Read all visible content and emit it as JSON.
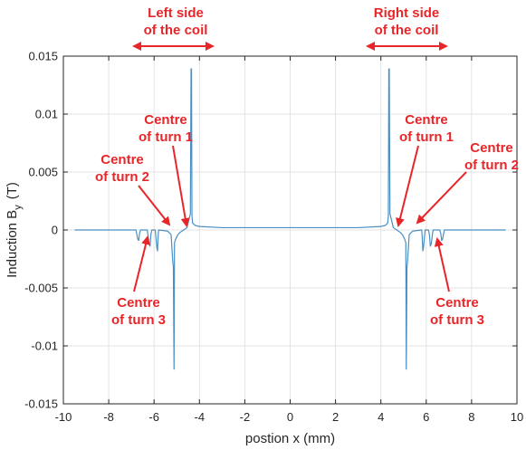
{
  "chart_data": {
    "type": "line",
    "xlabel": "postion x (mm)",
    "ylabel_main": "Induction B",
    "ylabel_sub": "y",
    "ylabel_unit": "(T)",
    "xlim": [
      -10,
      10
    ],
    "ylim": [
      -0.015,
      0.015
    ],
    "xticks": [
      -10,
      -8,
      -6,
      -4,
      -2,
      0,
      2,
      4,
      6,
      8,
      10
    ],
    "xtick_labels": [
      "-10",
      "-8",
      "-6",
      "-4",
      "-2",
      "0",
      "2",
      "4",
      "6",
      "8",
      "10"
    ],
    "yticks": [
      -0.015,
      -0.01,
      -0.005,
      0,
      0.005,
      0.01,
      0.015
    ],
    "ytick_labels": [
      "-0.015",
      "-0.01",
      "-0.005",
      "0",
      "0.005",
      "0.01",
      "0.015"
    ],
    "grid": true,
    "line_color": "#4a8fc4",
    "annotation_color": "#e8262a",
    "series": [
      {
        "x": [
          -9.5,
          -6.8,
          -6.72,
          -6.68,
          -6.64,
          -6.6,
          -6.3,
          -6.22,
          -6.18,
          -6.14,
          -6.1,
          -5.95,
          -5.88,
          -5.85,
          -5.82,
          -5.8,
          -5.4,
          -5.25,
          -5.18,
          -5.15,
          -5.12,
          -5.1,
          -5.05,
          -5.0,
          -4.95,
          -4.85,
          -4.7,
          -4.55,
          -4.4,
          -4.37,
          -4.35,
          -4.33,
          -4.3,
          -4.2,
          -4.0,
          -3.0,
          -2.0,
          -1.0,
          0,
          1.0,
          2.0,
          3.0,
          4.0,
          4.2,
          4.3,
          4.33,
          4.35,
          4.37,
          4.4,
          4.55,
          4.7,
          4.85,
          4.95,
          5.0,
          5.05,
          5.1,
          5.12,
          5.15,
          5.18,
          5.25,
          5.4,
          5.8,
          5.82,
          5.85,
          5.88,
          5.95,
          6.1,
          6.14,
          6.18,
          6.22,
          6.3,
          6.6,
          6.64,
          6.68,
          6.72,
          6.8,
          9.5
        ],
        "y": [
          0,
          0,
          -0.0008,
          -0.0009,
          -0.0003,
          0,
          0,
          -0.0012,
          -0.0014,
          -0.0004,
          0,
          0,
          -0.0015,
          -0.0018,
          -0.0005,
          0,
          -0.0001,
          -0.0004,
          -0.0026,
          -0.0032,
          -0.012,
          -0.0011,
          -0.0008,
          -0.0006,
          -0.0004,
          -0.0002,
          0,
          0.0002,
          0.0014,
          0.0139,
          0.0139,
          0.0012,
          0.0006,
          0.0004,
          0.0003,
          0.0002,
          0.0002,
          0.0002,
          0.0002,
          0.0002,
          0.0002,
          0.0002,
          0.0003,
          0.0004,
          0.0006,
          0.0012,
          0.0139,
          0.0139,
          0.0014,
          0.0002,
          0,
          -0.0002,
          -0.0004,
          -0.0006,
          -0.0008,
          -0.0011,
          -0.012,
          -0.0032,
          -0.0026,
          -0.0004,
          -0.0001,
          0,
          -0.0005,
          -0.0018,
          -0.0015,
          0,
          0,
          -0.0004,
          -0.0014,
          -0.0012,
          0,
          0,
          -0.0003,
          -0.0009,
          -0.0008,
          0,
          0
        ]
      }
    ],
    "annotations": {
      "left_side": [
        "Left side",
        "of the coil"
      ],
      "right_side": [
        "Right side",
        "of the coil"
      ],
      "left_turn1": [
        "Centre",
        "of turn 1"
      ],
      "left_turn2": [
        "Centre",
        "of turn 2"
      ],
      "left_turn3": [
        "Centre",
        "of turn 3"
      ],
      "right_turn1": [
        "Centre",
        "of turn 1"
      ],
      "right_turn2": [
        "Centre",
        "of turn 2"
      ],
      "right_turn3": [
        "Centre",
        "of turn 3"
      ]
    }
  }
}
